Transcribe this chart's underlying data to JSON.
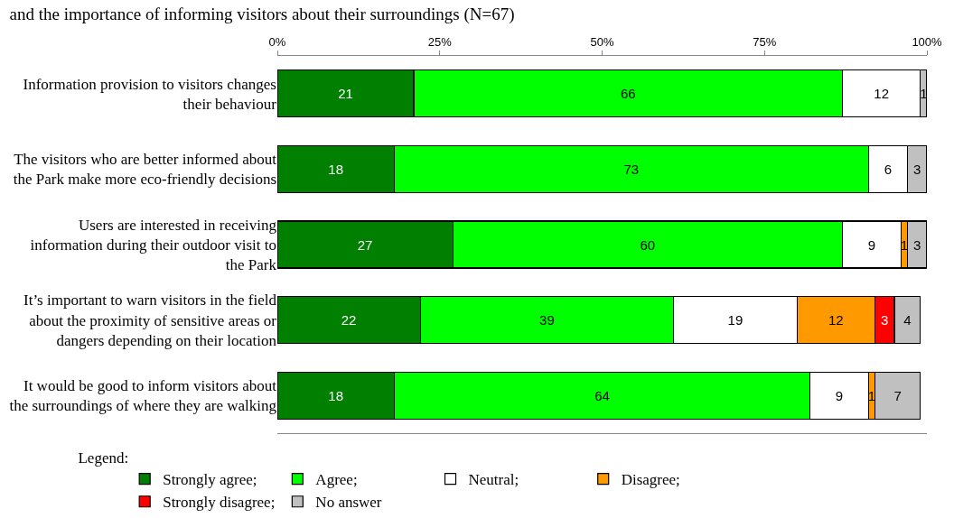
{
  "chart_data": {
    "type": "bar",
    "orientation": "horizontal",
    "stacked": true,
    "data_labels": true,
    "title": "and the importance of informing visitors about their surroundings (N=67)",
    "legend_title": "Legend:",
    "legend": "bottom",
    "grid": false,
    "categories": [
      "Information provision to visitors changes their behaviour",
      "The visitors who are better informed about the Park make more eco-friendly decisions",
      "Users are interested in receiving information during their outdoor visit to the Park",
      "It’s important to warn visitors in the field about the proximity of sensitive areas or dangers depending on their location",
      "It would be good to inform visitors about the surroundings of where they are walking"
    ],
    "xlim": [
      0,
      100
    ],
    "xticks": [
      {
        "value": 0,
        "label": "0%"
      },
      {
        "value": 25,
        "label": "25%"
      },
      {
        "value": 50,
        "label": "50%"
      },
      {
        "value": 75,
        "label": "75%"
      },
      {
        "value": 100,
        "label": "100%"
      }
    ],
    "series": [
      {
        "name": "Strongly agree;",
        "color": "#007f00",
        "values": [
          21,
          18,
          27,
          22,
          18
        ]
      },
      {
        "name": "Agree;",
        "color": "#00ff00",
        "values": [
          66,
          73,
          60,
          39,
          64
        ]
      },
      {
        "name": "Neutral;",
        "color": "#ffffff",
        "values": [
          12,
          6,
          9,
          19,
          9
        ]
      },
      {
        "name": "Disagree;",
        "color": "#ff9900",
        "values": [
          null,
          null,
          1,
          12,
          1
        ]
      },
      {
        "name": "Strongly disagree;",
        "color": "#ff0000",
        "values": [
          null,
          null,
          null,
          3,
          null
        ]
      },
      {
        "name": "No answer",
        "color": "#c0c0c0",
        "values": [
          1,
          3,
          3,
          4,
          7
        ]
      }
    ]
  }
}
